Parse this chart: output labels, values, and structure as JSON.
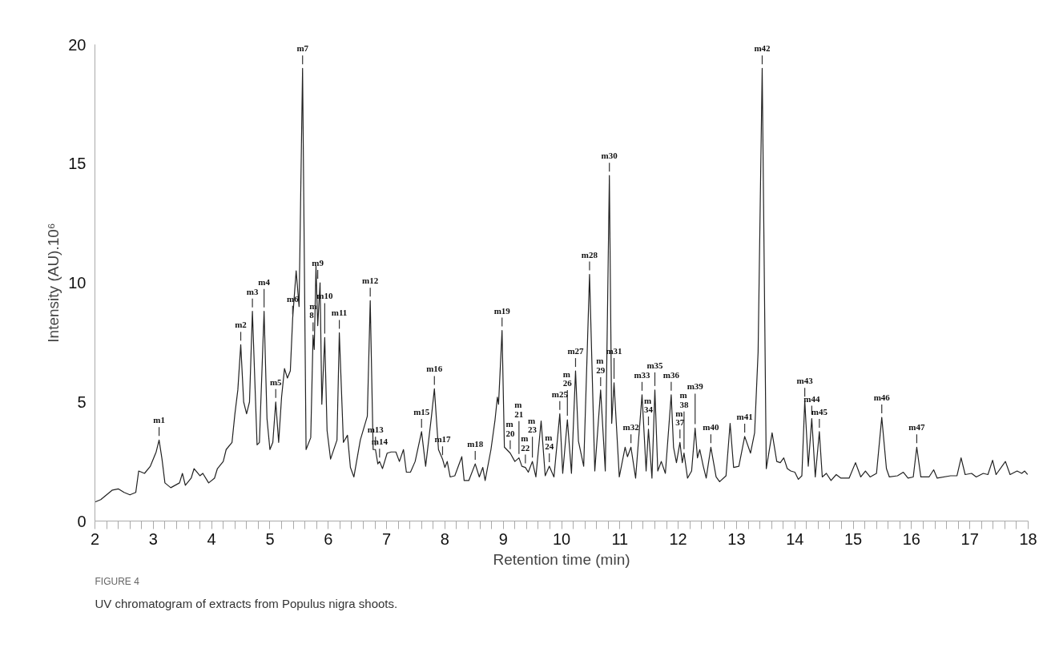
{
  "chart_data": {
    "type": "line",
    "xlabel": "Retention time (min)",
    "ylabel": "Intensity (AU).10⁶",
    "xlim": [
      2,
      18
    ],
    "ylim": [
      0,
      20
    ],
    "xticks": [
      2,
      3,
      4,
      5,
      6,
      7,
      8,
      9,
      10,
      11,
      12,
      13,
      14,
      15,
      16,
      17,
      18
    ],
    "yticks": [
      0,
      5,
      10,
      15,
      20
    ],
    "grid": false,
    "marker": "none",
    "line_style": "solid",
    "series": [
      {
        "color": "#222222",
        "x": [
          2.0,
          2.1,
          2.3,
          2.4,
          2.5,
          2.6,
          2.7,
          2.75,
          2.85,
          2.95,
          3.05,
          3.1,
          3.15,
          3.2,
          3.3,
          3.45,
          3.5,
          3.55,
          3.65,
          3.7,
          3.8,
          3.85,
          3.95,
          4.05,
          4.1,
          4.2,
          4.25,
          4.35,
          4.4,
          4.45,
          4.5,
          4.55,
          4.6,
          4.65,
          4.7,
          4.78,
          4.82,
          4.9,
          4.95,
          5.0,
          5.05,
          5.1,
          5.15,
          5.2,
          5.25,
          5.3,
          5.35,
          5.39,
          5.45,
          5.5,
          5.56,
          5.62,
          5.7,
          5.74,
          5.76,
          5.79,
          5.82,
          5.86,
          5.89,
          5.94,
          5.98,
          6.04,
          6.15,
          6.19,
          6.26,
          6.33,
          6.38,
          6.44,
          6.55,
          6.67,
          6.72,
          6.77,
          6.81,
          6.85,
          6.88,
          6.93,
          7.01,
          7.08,
          7.16,
          7.22,
          7.29,
          7.34,
          7.41,
          7.49,
          7.6,
          7.67,
          7.77,
          7.82,
          7.89,
          7.96,
          8.0,
          8.04,
          8.09,
          8.17,
          8.29,
          8.33,
          8.41,
          8.52,
          8.59,
          8.65,
          8.69,
          8.79,
          8.86,
          8.9,
          8.92,
          8.98,
          9.02,
          9.12,
          9.2,
          9.27,
          9.32,
          9.38,
          9.43,
          9.5,
          9.56,
          9.65,
          9.72,
          9.79,
          9.87,
          9.97,
          10.02,
          10.1,
          10.17,
          10.24,
          10.29,
          10.38,
          10.48,
          10.57,
          10.67,
          10.75,
          10.82,
          10.86,
          10.9,
          10.99,
          11.09,
          11.13,
          11.19,
          11.27,
          11.38,
          11.45,
          11.49,
          11.55,
          11.6,
          11.65,
          11.71,
          11.78,
          11.88,
          11.92,
          11.97,
          12.03,
          12.07,
          12.1,
          12.16,
          12.23,
          12.29,
          12.33,
          12.37,
          12.43,
          12.48,
          12.56,
          12.65,
          12.71,
          12.82,
          12.89,
          12.95,
          13.04,
          13.14,
          13.24,
          13.31,
          13.37,
          13.44,
          13.51,
          13.61,
          13.69,
          13.75,
          13.81,
          13.87,
          13.93,
          14.0,
          14.06,
          14.12,
          14.17,
          14.23,
          14.29,
          14.35,
          14.42,
          14.47,
          14.54,
          14.62,
          14.71,
          14.79,
          14.93,
          15.04,
          15.13,
          15.21,
          15.29,
          15.4,
          15.49,
          15.57,
          15.62,
          15.76,
          15.86,
          15.94,
          16.03,
          16.09,
          16.16,
          16.3,
          16.38,
          16.44,
          16.67,
          16.78,
          16.85,
          16.92,
          17.03,
          17.11,
          17.23,
          17.31,
          17.39,
          17.45,
          17.61,
          17.69,
          17.81,
          17.89,
          17.94,
          17.99
        ],
        "values": [
          0.8,
          0.9,
          1.3,
          1.35,
          1.2,
          1.1,
          1.2,
          2.1,
          2.0,
          2.3,
          2.9,
          3.4,
          2.6,
          1.6,
          1.4,
          1.6,
          2.0,
          1.5,
          1.8,
          2.2,
          1.9,
          2.0,
          1.6,
          1.8,
          2.2,
          2.5,
          3.0,
          3.3,
          4.5,
          5.5,
          7.4,
          5.0,
          4.5,
          5.0,
          8.8,
          3.2,
          3.3,
          8.8,
          4.3,
          3.0,
          3.3,
          5.0,
          3.3,
          5.2,
          6.4,
          6.0,
          6.3,
          8.5,
          10.5,
          9.0,
          19.0,
          3.0,
          3.5,
          7.8,
          7.2,
          10.7,
          8.2,
          10.0,
          4.9,
          7.7,
          3.8,
          2.6,
          3.4,
          7.9,
          3.3,
          3.6,
          2.25,
          1.85,
          3.4,
          4.4,
          9.25,
          3.0,
          3.0,
          2.4,
          2.5,
          2.2,
          2.85,
          2.9,
          2.9,
          2.5,
          3.0,
          2.05,
          2.05,
          2.5,
          3.75,
          2.3,
          4.4,
          5.55,
          3.0,
          2.6,
          2.25,
          2.5,
          1.85,
          1.9,
          2.7,
          1.7,
          1.7,
          2.4,
          1.85,
          2.25,
          1.7,
          3.0,
          4.25,
          5.2,
          4.9,
          8.0,
          3.1,
          2.85,
          2.5,
          2.65,
          2.3,
          2.25,
          2.05,
          2.5,
          1.85,
          4.2,
          1.9,
          2.3,
          1.85,
          4.5,
          2.0,
          4.25,
          2.0,
          6.3,
          3.35,
          2.3,
          10.35,
          2.1,
          5.5,
          2.1,
          14.5,
          4.1,
          5.8,
          1.85,
          3.1,
          2.7,
          3.1,
          1.8,
          5.3,
          2.1,
          3.85,
          1.8,
          5.5,
          2.1,
          2.5,
          2.0,
          5.3,
          3.1,
          2.45,
          3.3,
          2.45,
          2.85,
          1.8,
          2.1,
          3.9,
          2.65,
          3.0,
          2.3,
          1.8,
          3.1,
          1.85,
          1.65,
          1.9,
          4.1,
          2.25,
          2.3,
          3.55,
          2.85,
          3.7,
          7.1,
          19.0,
          2.2,
          3.7,
          2.5,
          2.45,
          2.65,
          2.2,
          2.1,
          2.05,
          1.75,
          1.9,
          5.05,
          2.3,
          4.3,
          1.85,
          3.75,
          1.85,
          2.0,
          1.7,
          1.95,
          1.8,
          1.8,
          2.45,
          1.85,
          2.1,
          1.85,
          2.0,
          4.35,
          2.2,
          1.85,
          1.9,
          2.05,
          1.8,
          1.85,
          3.1,
          1.85,
          1.85,
          2.15,
          1.8,
          1.9,
          1.9,
          2.65,
          1.95,
          2.0,
          1.85,
          2.0,
          1.95,
          2.55,
          1.95,
          2.5,
          1.95,
          2.1,
          2.0,
          2.1,
          1.95
        ]
      }
    ],
    "annotations": [
      {
        "text": "m1",
        "x": 3.1,
        "y": 3.4
      },
      {
        "text": "m2",
        "x": 4.5,
        "y": 7.4
      },
      {
        "text": "m3",
        "x": 4.7,
        "y": 8.8
      },
      {
        "text": "m4",
        "x": 4.9,
        "y": 8.8
      },
      {
        "text": "m5",
        "x": 5.1,
        "y": 5.0
      },
      {
        "text": "m6",
        "x": 5.39,
        "y": 8.5
      },
      {
        "text": "m7",
        "x": 5.56,
        "y": 19.0
      },
      {
        "text": "m\n8",
        "x": 5.74,
        "y": 7.8
      },
      {
        "text": "m9",
        "x": 5.82,
        "y": 10.0
      },
      {
        "text": "m10",
        "x": 5.94,
        "y": 7.7
      },
      {
        "text": "m11",
        "x": 6.19,
        "y": 7.9
      },
      {
        "text": "m12",
        "x": 6.72,
        "y": 9.25
      },
      {
        "text": "m13",
        "x": 6.81,
        "y": 3.0
      },
      {
        "text": "m14",
        "x": 6.88,
        "y": 2.5
      },
      {
        "text": "m15",
        "x": 7.6,
        "y": 3.75
      },
      {
        "text": "m16",
        "x": 7.82,
        "y": 5.55
      },
      {
        "text": "m17",
        "x": 7.96,
        "y": 2.6
      },
      {
        "text": "m18",
        "x": 8.52,
        "y": 2.4
      },
      {
        "text": "m19",
        "x": 8.98,
        "y": 8.0
      },
      {
        "text": "m\n20",
        "x": 9.12,
        "y": 2.85
      },
      {
        "text": "m\n21",
        "x": 9.27,
        "y": 2.65
      },
      {
        "text": "m\n22",
        "x": 9.38,
        "y": 2.25
      },
      {
        "text": "m\n23",
        "x": 9.5,
        "y": 2.5
      },
      {
        "text": "m\n24",
        "x": 9.79,
        "y": 2.3
      },
      {
        "text": "m25",
        "x": 9.97,
        "y": 4.5
      },
      {
        "text": "m\n26",
        "x": 10.1,
        "y": 4.25
      },
      {
        "text": "m27",
        "x": 10.24,
        "y": 6.3
      },
      {
        "text": "m28",
        "x": 10.48,
        "y": 10.35
      },
      {
        "text": "m\n29",
        "x": 10.67,
        "y": 5.5
      },
      {
        "text": "m30",
        "x": 10.82,
        "y": 14.5
      },
      {
        "text": "m31",
        "x": 10.9,
        "y": 5.8
      },
      {
        "text": "m32",
        "x": 11.19,
        "y": 3.1
      },
      {
        "text": "m33",
        "x": 11.38,
        "y": 5.3
      },
      {
        "text": "m\n34",
        "x": 11.49,
        "y": 3.85
      },
      {
        "text": "m35",
        "x": 11.6,
        "y": 5.5
      },
      {
        "text": "m36",
        "x": 11.88,
        "y": 5.3
      },
      {
        "text": "m\n37",
        "x": 12.03,
        "y": 3.3
      },
      {
        "text": "m\n38",
        "x": 12.1,
        "y": 2.85
      },
      {
        "text": "m39",
        "x": 12.29,
        "y": 3.9
      },
      {
        "text": "m40",
        "x": 12.56,
        "y": 3.1
      },
      {
        "text": "m41",
        "x": 13.14,
        "y": 3.55
      },
      {
        "text": "m42",
        "x": 13.44,
        "y": 19.0
      },
      {
        "text": "m43",
        "x": 14.17,
        "y": 5.05
      },
      {
        "text": "m44",
        "x": 14.29,
        "y": 4.3
      },
      {
        "text": "m45",
        "x": 14.42,
        "y": 3.75
      },
      {
        "text": "m46",
        "x": 15.49,
        "y": 4.35
      },
      {
        "text": "m47",
        "x": 16.09,
        "y": 3.1
      },
      "FIGURE 4",
      "UV chromatogram of extracts from Populus nigra shoots."
    ]
  }
}
